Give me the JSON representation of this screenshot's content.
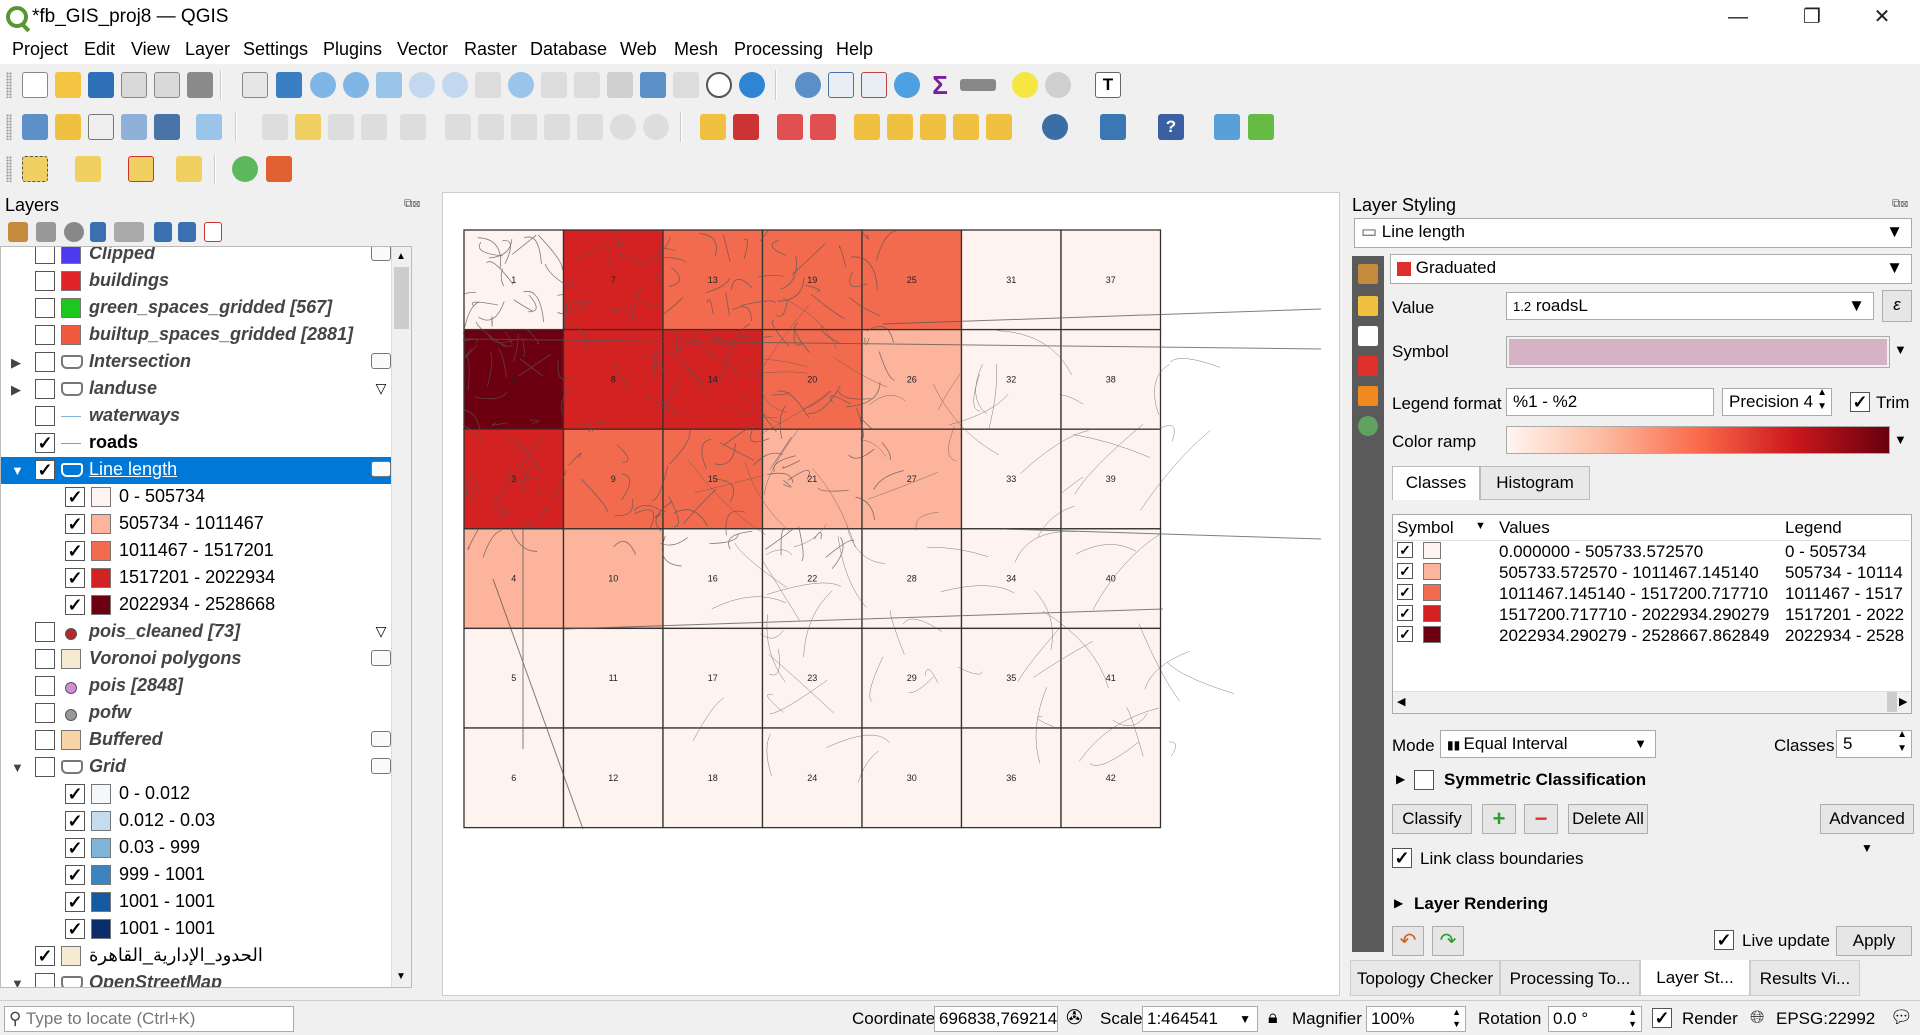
{
  "window": {
    "title": "*fb_GIS_proj8 — QGIS",
    "minimize": "—",
    "restore": "❐",
    "close": "✕"
  },
  "menu": [
    "Project",
    "Edit",
    "View",
    "Layer",
    "Settings",
    "Plugins",
    "Vector",
    "Raster",
    "Database",
    "Web",
    "Mesh",
    "Processing",
    "Help"
  ],
  "layers_panel": {
    "title": "Layers",
    "items": [
      {
        "label": "Clipped",
        "checked": false,
        "swatch": "#4b3af0",
        "italic": true,
        "tag": true
      },
      {
        "label": "buildings",
        "checked": false,
        "swatch": "#e3232a",
        "italic": true
      },
      {
        "label": "green_spaces_gridded [567]",
        "checked": false,
        "swatch": "#1ec71e",
        "italic": true
      },
      {
        "label": "builtup_spaces_gridded [2881]",
        "checked": false,
        "swatch": "#ef5b3c",
        "italic": true
      },
      {
        "label": "Intersection",
        "checked": false,
        "italic": true,
        "expander": "▶",
        "tag": true
      },
      {
        "label": "landuse",
        "checked": false,
        "italic": true,
        "expander": "▶",
        "filter": true
      },
      {
        "label": "waterways",
        "checked": false,
        "italic": true
      },
      {
        "label": "roads",
        "checked": true,
        "bold": true
      },
      {
        "label": "Line length",
        "checked": true,
        "selected": true,
        "expander": "▼",
        "tag": true
      },
      {
        "label": "0 - 505734",
        "checked": true,
        "swatch": "#fef3ef",
        "indent": true
      },
      {
        "label": "505734 - 1011467",
        "checked": true,
        "swatch": "#fcb49c",
        "indent": true
      },
      {
        "label": "1011467 - 1517201",
        "checked": true,
        "swatch": "#f26b4f",
        "indent": true
      },
      {
        "label": "1517201 - 2022934",
        "checked": true,
        "swatch": "#d42222",
        "indent": true
      },
      {
        "label": "2022934 - 2528668",
        "checked": true,
        "swatch": "#6d0010",
        "indent": true
      },
      {
        "label": "pois_cleaned [73]",
        "checked": false,
        "italic": true,
        "dot": "#b22b2b",
        "filter": true
      },
      {
        "label": "Voronoi polygons",
        "checked": false,
        "swatch": "#f6ead0",
        "italic": true,
        "tag": true
      },
      {
        "label": "pois [2848]",
        "checked": false,
        "italic": true,
        "dot": "#d48cd9"
      },
      {
        "label": "pofw",
        "checked": false,
        "italic": true,
        "dot": "#999999"
      },
      {
        "label": "Buffered",
        "checked": false,
        "swatch": "#f8d5a9",
        "italic": true,
        "tag": true
      },
      {
        "label": "Grid",
        "checked": false,
        "italic": true,
        "expander": "▼",
        "tag": true
      },
      {
        "label": "0 - 0.012",
        "checked": true,
        "swatch": "#f4f8fd",
        "indent": true
      },
      {
        "label": "0.012 - 0.03",
        "checked": true,
        "swatch": "#c5dbef",
        "indent": true
      },
      {
        "label": "0.03 - 999",
        "checked": true,
        "swatch": "#7fb4d9",
        "indent": true
      },
      {
        "label": "999 - 1001",
        "checked": true,
        "swatch": "#3a84c1",
        "indent": true
      },
      {
        "label": "1001 - 1001",
        "checked": true,
        "swatch": "#1459a2",
        "indent": true
      },
      {
        "label": "1001 - 1001",
        "checked": true,
        "swatch": "#0a2e6b",
        "indent": true
      },
      {
        "label": "الحدود_الإدارية_القاهرة",
        "checked": true,
        "swatch": "#f6ead0"
      },
      {
        "label": "OpenStreetMap",
        "checked": false,
        "italic": true,
        "expander": "▼"
      }
    ]
  },
  "map": {
    "cells": [
      {
        "id": "1",
        "fill": "#fef3ef"
      },
      {
        "id": "2",
        "fill": "#6d0010"
      },
      {
        "id": "3",
        "fill": "#d42222"
      },
      {
        "id": "4",
        "fill": "#fcb49c"
      },
      {
        "id": "5",
        "fill": "#fef3ef"
      },
      {
        "id": "6",
        "fill": "#fef3ef"
      },
      {
        "id": "7",
        "fill": "#d42222"
      },
      {
        "id": "8",
        "fill": "#d42222"
      },
      {
        "id": "9",
        "fill": "#f26b4f"
      },
      {
        "id": "10",
        "fill": "#fcb49c"
      },
      {
        "id": "11",
        "fill": "#fef3ef"
      },
      {
        "id": "12",
        "fill": "#fef3ef"
      },
      {
        "id": "13",
        "fill": "#f26b4f"
      },
      {
        "id": "14",
        "fill": "#d42222"
      },
      {
        "id": "15",
        "fill": "#f26b4f"
      },
      {
        "id": "16",
        "fill": "#fef3ef"
      },
      {
        "id": "17",
        "fill": "#fef3ef"
      },
      {
        "id": "18",
        "fill": "#fef3ef"
      },
      {
        "id": "19",
        "fill": "#f26b4f"
      },
      {
        "id": "20",
        "fill": "#f26b4f"
      },
      {
        "id": "21",
        "fill": "#fcb49c"
      },
      {
        "id": "22",
        "fill": "#fef3ef"
      },
      {
        "id": "23",
        "fill": "#fef3ef"
      },
      {
        "id": "24",
        "fill": "#fef3ef"
      },
      {
        "id": "25",
        "fill": "#f26b4f"
      },
      {
        "id": "26",
        "fill": "#fcb49c"
      },
      {
        "id": "27",
        "fill": "#fcb49c"
      },
      {
        "id": "28",
        "fill": "#fef3ef"
      },
      {
        "id": "29",
        "fill": "#fef3ef"
      },
      {
        "id": "30",
        "fill": "#fef3ef"
      },
      {
        "id": "31",
        "fill": "#fef3ef"
      },
      {
        "id": "32",
        "fill": "#fef3ef"
      },
      {
        "id": "33",
        "fill": "#fef3ef"
      },
      {
        "id": "34",
        "fill": "#fef3ef"
      },
      {
        "id": "35",
        "fill": "#fef3ef"
      },
      {
        "id": "36",
        "fill": "#fef3ef"
      },
      {
        "id": "37",
        "fill": "#fef3ef"
      },
      {
        "id": "38",
        "fill": "#fef3ef"
      },
      {
        "id": "39",
        "fill": "#fef3ef"
      },
      {
        "id": "40",
        "fill": "#fef3ef"
      },
      {
        "id": "41",
        "fill": "#fef3ef"
      },
      {
        "id": "42",
        "fill": "#fef3ef"
      }
    ]
  },
  "styling": {
    "title": "Layer Styling",
    "layer": "Line length",
    "renderer": "Graduated",
    "value_label": "Value",
    "value": "roadsL",
    "value_type": "1.2",
    "symbol_label": "Symbol",
    "symbol_color": "#d5b3c5",
    "legend_format_label": "Legend format",
    "legend_format": "%1 - %2",
    "precision": "Precision 4",
    "trim_label": "Trim",
    "color_ramp_label": "Color ramp",
    "tabs": [
      "Classes",
      "Histogram"
    ],
    "columns": [
      "Symbol",
      "Values",
      "Legend"
    ],
    "classes": [
      {
        "color": "#fef3ef",
        "values": "0.000000 - 505733.572570",
        "legend": "0 - 505734"
      },
      {
        "color": "#fcb49c",
        "values": "505733.572570 - 1011467.145140",
        "legend": "505734 - 10114"
      },
      {
        "color": "#f26b4f",
        "values": "1011467.145140 - 1517200.717710",
        "legend": "1011467 - 1517"
      },
      {
        "color": "#d42222",
        "values": "1517200.717710 - 2022934.290279",
        "legend": "1517201 - 2022"
      },
      {
        "color": "#6d0010",
        "values": "2022934.290279 - 2528667.862849",
        "legend": "2022934 - 2528"
      }
    ],
    "mode_label": "Mode",
    "mode": "Equal Interval",
    "classes_label": "Classes",
    "classes_count": "5",
    "symmetric": "Symmetric Classification",
    "classify": "Classify",
    "delete_all": "Delete All",
    "advanced": "Advanced",
    "link_boundaries": "Link class boundaries",
    "layer_rendering": "Layer Rendering",
    "live_update": "Live update",
    "apply": "Apply"
  },
  "bottom_tabs": [
    "Topology Checker ...",
    "Processing To...",
    "Layer St...",
    "Results Vi..."
  ],
  "status": {
    "locate_placeholder": "Type to locate (Ctrl+K)",
    "coordinate_label": "Coordinate",
    "coordinate": "696838,769214",
    "scale_label": "Scale",
    "scale": "1:464541",
    "magnifier_label": "Magnifier",
    "magnifier": "100%",
    "rotation_label": "Rotation",
    "rotation": "0.0 °",
    "render_label": "Render",
    "crs": "EPSG:22992"
  }
}
